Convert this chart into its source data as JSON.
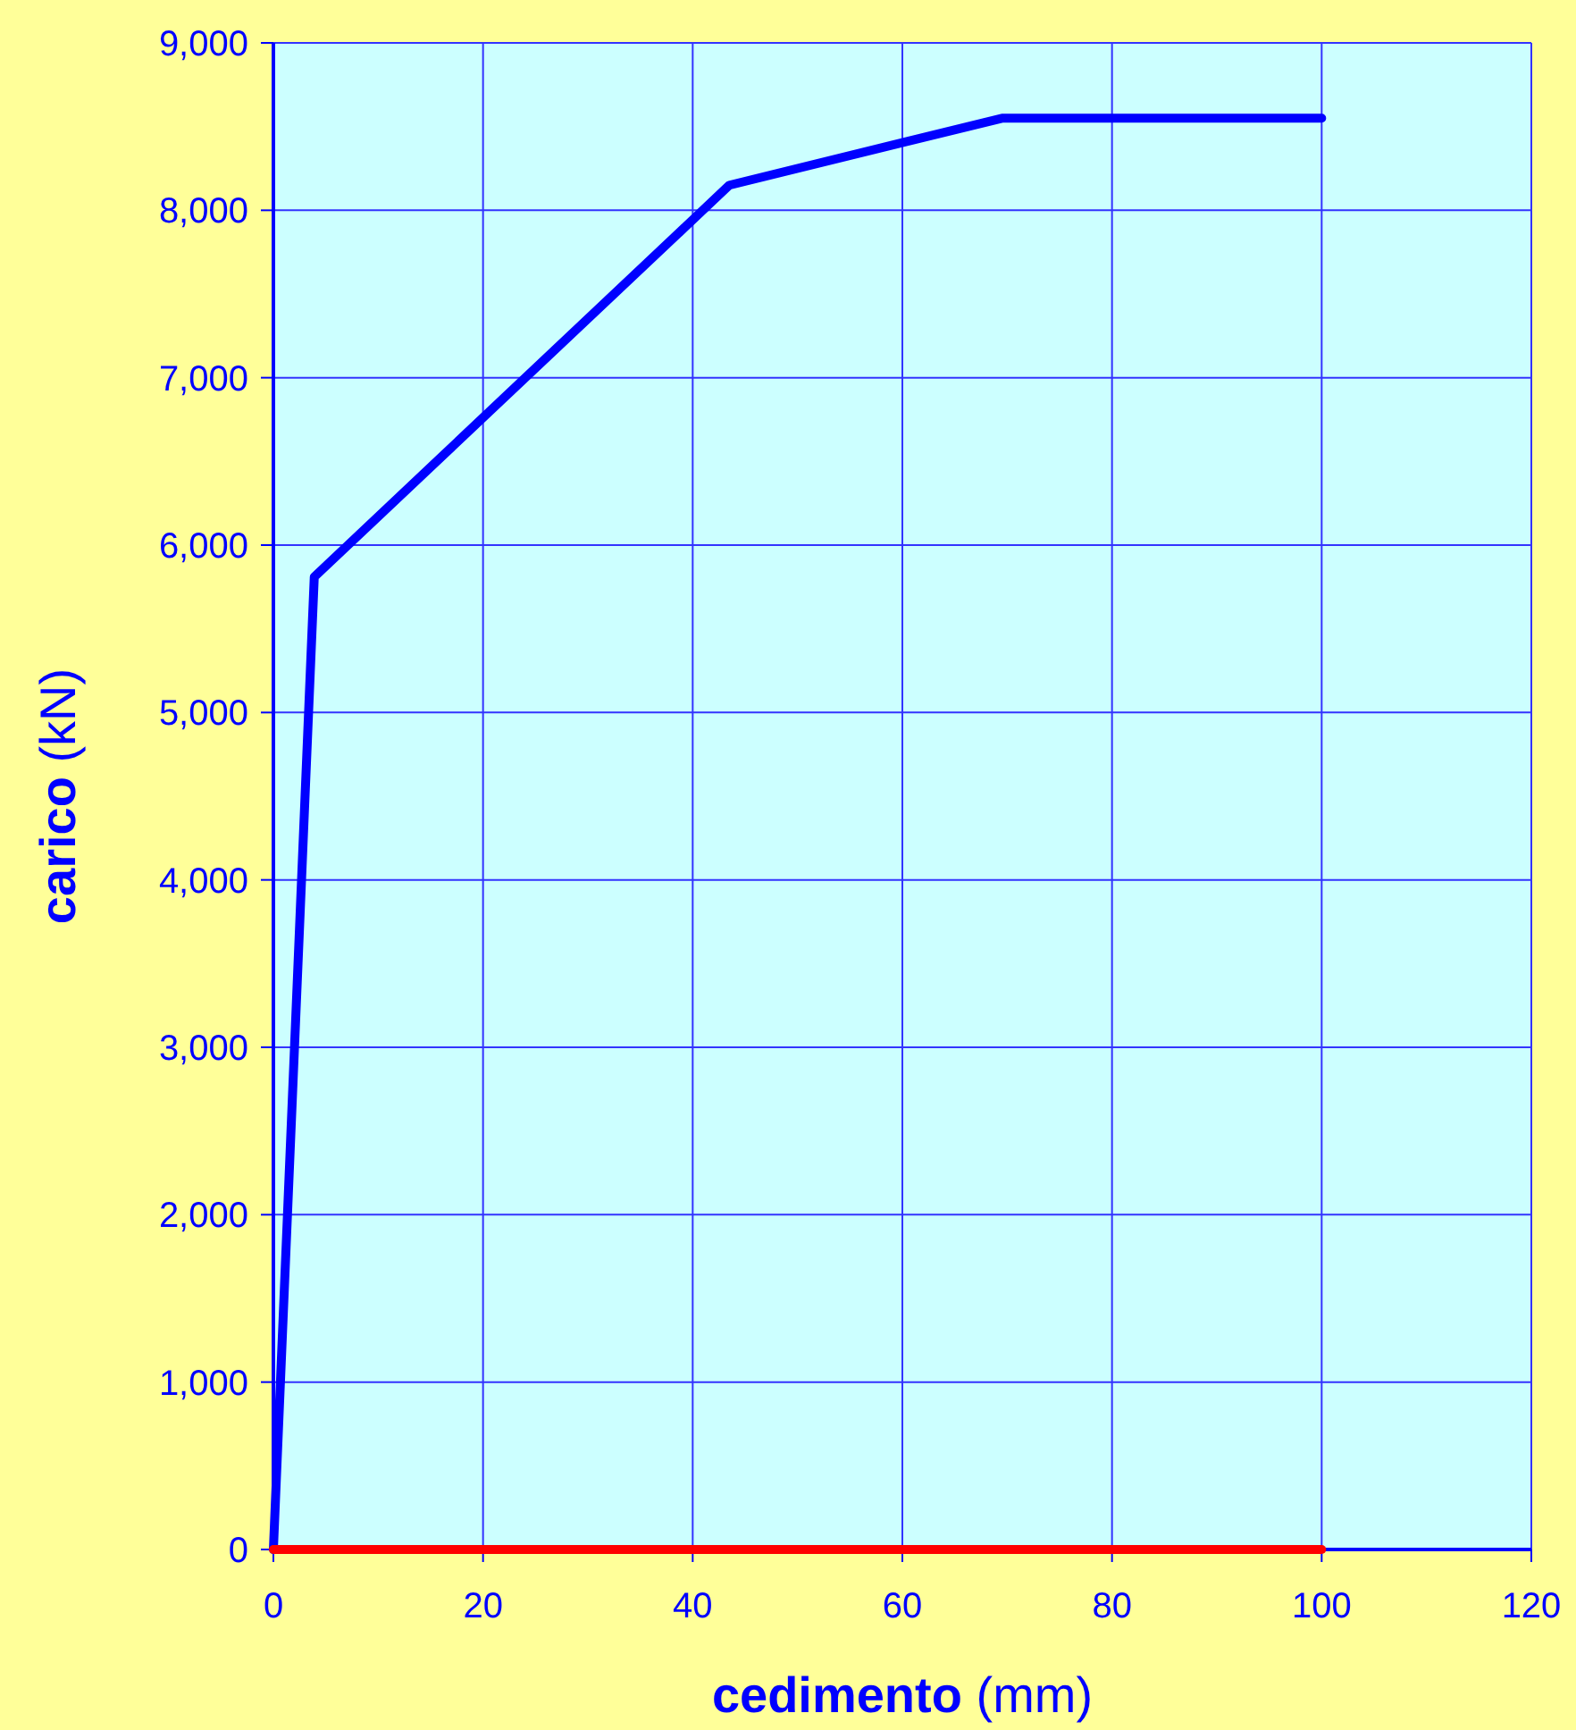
{
  "chart_data": {
    "type": "line",
    "xlabel": "cedimento (mm)",
    "ylabel": "carico (kN)",
    "xlim": [
      0,
      120
    ],
    "xticks": [
      0,
      20,
      40,
      60,
      80,
      100,
      120
    ],
    "ylim": [
      0,
      9000
    ],
    "yticks": [
      0,
      {
        "value": 1000,
        "label": "1,000"
      },
      {
        "value": 2000,
        "label": "2,000"
      },
      {
        "value": 3000,
        "label": "3,000"
      },
      {
        "value": 4000,
        "label": "4,000"
      },
      {
        "value": 5000,
        "label": "5,000"
      },
      {
        "value": 6000,
        "label": "6,000"
      },
      {
        "value": 7000,
        "label": "7,000"
      },
      {
        "value": 8000,
        "label": "8,000"
      },
      {
        "value": 9000,
        "label": "9,000"
      }
    ],
    "grid": true,
    "marker": "none",
    "line_style": "solid",
    "series": [
      {
        "color": "#0000ff",
        "x": [
          0,
          3.9,
          43.5,
          69.5,
          100
        ],
        "values": [
          0,
          5810,
          8150,
          8550,
          8550
        ]
      },
      {
        "color": "#ff0000",
        "x": [
          0,
          100
        ],
        "values": [
          0,
          0
        ]
      }
    ]
  }
}
